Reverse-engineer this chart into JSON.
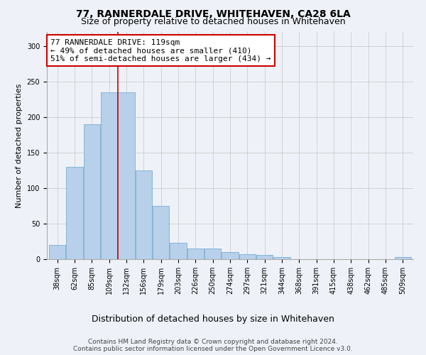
{
  "title": "77, RANNERDALE DRIVE, WHITEHAVEN, CA28 6LA",
  "subtitle": "Size of property relative to detached houses in Whitehaven",
  "xlabel": "Distribution of detached houses by size in Whitehaven",
  "ylabel": "Number of detached properties",
  "categories": [
    "38sqm",
    "62sqm",
    "85sqm",
    "109sqm",
    "132sqm",
    "156sqm",
    "179sqm",
    "203sqm",
    "226sqm",
    "250sqm",
    "274sqm",
    "297sqm",
    "321sqm",
    "344sqm",
    "368sqm",
    "391sqm",
    "415sqm",
    "438sqm",
    "462sqm",
    "485sqm",
    "509sqm"
  ],
  "values": [
    20,
    130,
    190,
    235,
    235,
    125,
    75,
    23,
    15,
    15,
    10,
    7,
    6,
    3,
    0,
    0,
    0,
    0,
    0,
    0,
    3
  ],
  "bar_color": "#b8d0ea",
  "bar_edgecolor": "#7aaed4",
  "vline_x_index": 3.5,
  "annotation_text": "77 RANNERDALE DRIVE: 119sqm\n← 49% of detached houses are smaller (410)\n51% of semi-detached houses are larger (434) →",
  "annotation_box_facecolor": "#ffffff",
  "annotation_box_edgecolor": "#cc0000",
  "vline_color": "#cc0000",
  "grid_color": "#cccccc",
  "ylim": [
    0,
    320
  ],
  "yticks": [
    0,
    50,
    100,
    150,
    200,
    250,
    300
  ],
  "background_color": "#eef2f8",
  "footer_line1": "Contains HM Land Registry data © Crown copyright and database right 2024.",
  "footer_line2": "Contains public sector information licensed under the Open Government Licence v3.0.",
  "title_fontsize": 10,
  "subtitle_fontsize": 9,
  "annotation_fontsize": 8,
  "ylabel_fontsize": 8,
  "xlabel_fontsize": 9,
  "tick_fontsize": 7,
  "footer_fontsize": 6.5
}
